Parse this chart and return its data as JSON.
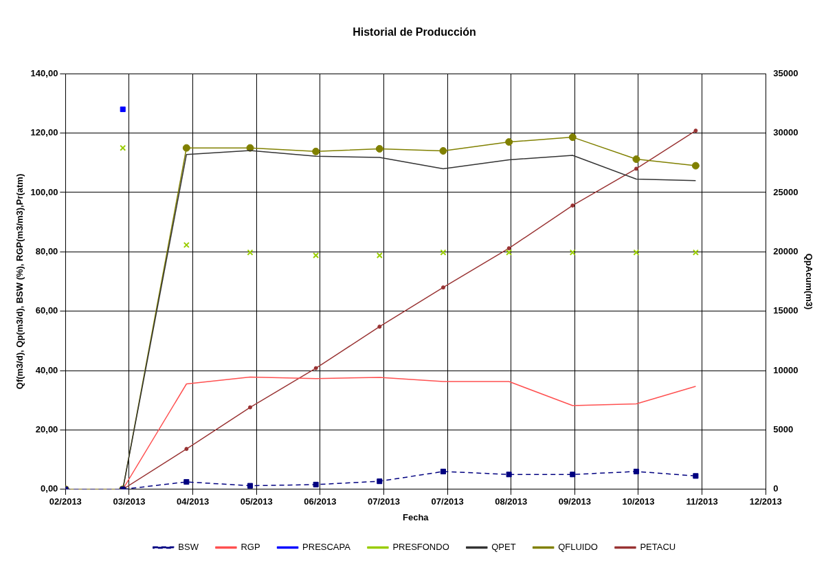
{
  "chart_data": {
    "type": "line",
    "title": "Historial de Producción",
    "xlabel": "Fecha",
    "ylabel": "Qf(m3/d), Qp(m3/d), BSW (%), RGP(m3/m3),Pr(atm)",
    "y2label": "QpAcum(m3)",
    "x": [
      "2013-02-01",
      "2013-02-28",
      "2013-03-30",
      "2013-04-29",
      "2013-05-30",
      "2013-06-29",
      "2013-07-29",
      "2013-08-29",
      "2013-09-28",
      "2013-10-28",
      "2013-11-25"
    ],
    "xlim": [
      "2013-02-01",
      "2013-12-28"
    ],
    "xticks": [
      {
        "value": "2013-02-01",
        "label": "02/2013"
      },
      {
        "value": "2013-03-03",
        "label": "03/2013"
      },
      {
        "value": "2013-04-02",
        "label": "04/2013"
      },
      {
        "value": "2013-05-02",
        "label": "05/2013"
      },
      {
        "value": "2013-06-01",
        "label": "06/2013"
      },
      {
        "value": "2013-07-01",
        "label": "07/2013"
      },
      {
        "value": "2013-07-31",
        "label": "07/2013"
      },
      {
        "value": "2013-08-30",
        "label": "08/2013"
      },
      {
        "value": "2013-09-29",
        "label": "09/2013"
      },
      {
        "value": "2013-10-29",
        "label": "10/2013"
      },
      {
        "value": "2013-11-28",
        "label": "11/2013"
      },
      {
        "value": "2013-12-28",
        "label": "12/2013"
      }
    ],
    "ylim": [
      0,
      140
    ],
    "yticks": [
      {
        "value": 0,
        "label": "0,00"
      },
      {
        "value": 20,
        "label": "20,00"
      },
      {
        "value": 40,
        "label": "40,00"
      },
      {
        "value": 60,
        "label": "60,00"
      },
      {
        "value": 80,
        "label": "80,00"
      },
      {
        "value": 100,
        "label": "100,00"
      },
      {
        "value": 120,
        "label": "120,00"
      },
      {
        "value": 140,
        "label": "140,00"
      }
    ],
    "y2lim": [
      0,
      35000
    ],
    "y2ticks": [
      0,
      5000,
      10000,
      15000,
      20000,
      25000,
      30000,
      35000
    ],
    "grid": true,
    "legend": "bottom",
    "series": [
      {
        "name": "BSW",
        "color": "#000080",
        "marker": "square",
        "line_style": "dashed",
        "values": [
          0,
          0,
          2.5,
          1.2,
          1.6,
          2.7,
          6,
          5,
          5,
          6,
          4.5
        ]
      },
      {
        "name": "RGP",
        "color": "#ff5050",
        "marker": "none",
        "line_style": "solid",
        "values": [
          null,
          0,
          35.5,
          37.8,
          37.3,
          37.7,
          36.3,
          36.3,
          28.2,
          28.8,
          34.7
        ]
      },
      {
        "name": "PRESCAPA",
        "type": "scatter",
        "color": "#0000ff",
        "marker": "square",
        "values": [
          null,
          128,
          null,
          null,
          null,
          null,
          null,
          null,
          null,
          null,
          null
        ]
      },
      {
        "name": "PRESFONDO",
        "type": "scatter",
        "color": "#99cc00",
        "marker": "cross",
        "values": [
          null,
          115,
          82.3,
          79.8,
          78.8,
          78.8,
          79.8,
          79.8,
          79.8,
          79.8,
          79.8
        ]
      },
      {
        "name": "QPET",
        "color": "#333333",
        "marker": "none",
        "line_style": "solid",
        "values": [
          null,
          0,
          112.8,
          114.1,
          112.2,
          111.8,
          108,
          111,
          112.5,
          104.5,
          104
        ]
      },
      {
        "name": "QFLUIDO",
        "color": "#808000",
        "marker": "circle",
        "line_style": "solid",
        "values": [
          0,
          0,
          115,
          115,
          113.8,
          114.7,
          114,
          117,
          118.6,
          111.2,
          109
        ]
      },
      {
        "name": "PETACU",
        "color": "#993333",
        "marker": "circle",
        "line_style": "solid",
        "axis": "y2",
        "values": [
          0,
          0,
          3400,
          6900,
          10200,
          13700,
          17000,
          20300,
          23900,
          27000,
          30200
        ]
      }
    ]
  }
}
